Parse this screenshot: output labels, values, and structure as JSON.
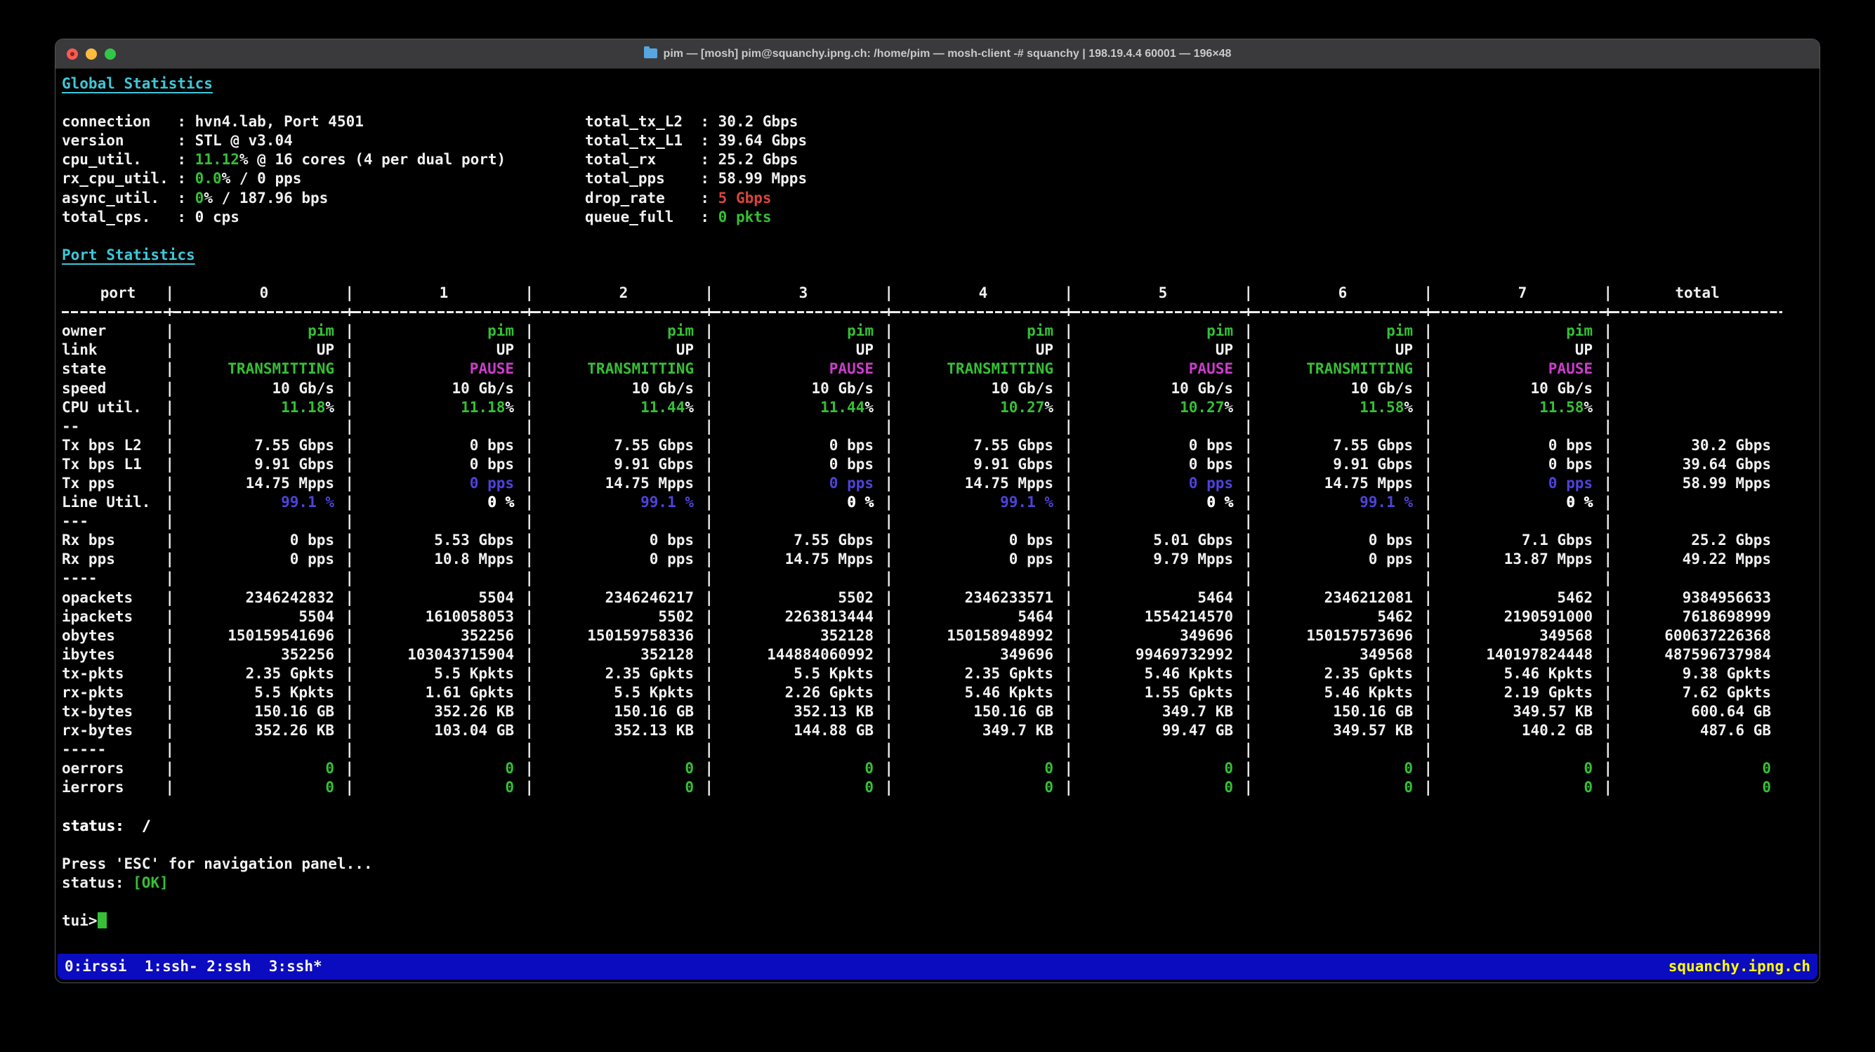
{
  "window": {
    "title": "pim — [mosh] pim@squanchy.ipng.ch: /home/pim — mosh-client -# squanchy | 198.19.4.4 60001 — 196×48"
  },
  "colors": {
    "foreground": "#f1f1f1",
    "green": "#35c035",
    "cyan": "#3ec7d8",
    "magenta": "#cb3dcb",
    "blue": "#4e42dd",
    "red": "#d8453c",
    "yellow": "#ffff00",
    "tmux_bar": "#0b0bc0"
  },
  "global_stats": {
    "heading": "Global Statistics",
    "left": [
      {
        "label": "connection",
        "value": [
          {
            "t": "hvn4.lab, Port 4501"
          }
        ]
      },
      {
        "label": "version",
        "value": [
          {
            "t": "STL @ v3.04"
          }
        ]
      },
      {
        "label": "cpu_util.",
        "value": [
          {
            "t": "11.12",
            "c": "green"
          },
          {
            "t": "% @ 16 cores (4 per dual port)"
          }
        ]
      },
      {
        "label": "rx_cpu_util.",
        "value": [
          {
            "t": "0.0",
            "c": "green"
          },
          {
            "t": "% / 0 pps"
          }
        ]
      },
      {
        "label": "async_util.",
        "value": [
          {
            "t": "0",
            "c": "green"
          },
          {
            "t": "% / 187.96 bps"
          }
        ]
      },
      {
        "label": "total_cps.",
        "value": [
          {
            "t": "0 cps"
          }
        ]
      }
    ],
    "right": [
      {
        "label": "total_tx_L2",
        "value": [
          {
            "t": "30.2 Gbps"
          }
        ]
      },
      {
        "label": "total_tx_L1",
        "value": [
          {
            "t": "39.64 Gbps"
          }
        ]
      },
      {
        "label": "total_rx",
        "value": [
          {
            "t": "25.2 Gbps"
          }
        ]
      },
      {
        "label": "total_pps",
        "value": [
          {
            "t": "58.99 Mpps"
          }
        ]
      },
      {
        "label": "drop_rate",
        "value": [
          {
            "t": "5 Gbps",
            "c": "red"
          }
        ]
      },
      {
        "label": "queue_full",
        "value": [
          {
            "t": "0 pkts",
            "c": "green"
          }
        ]
      }
    ]
  },
  "port_stats": {
    "heading": "Port Statistics",
    "columns": [
      "port",
      "0",
      "1",
      "2",
      "3",
      "4",
      "5",
      "6",
      "7",
      "total"
    ],
    "rows": [
      {
        "l": "owner",
        "c": "green",
        "v": [
          "pim",
          "pim",
          "pim",
          "pim",
          "pim",
          "pim",
          "pim",
          "pim",
          ""
        ]
      },
      {
        "l": "link",
        "v": [
          "UP",
          "UP",
          "UP",
          "UP",
          "UP",
          "UP",
          "UP",
          "UP",
          ""
        ]
      },
      {
        "l": "state",
        "v": [
          {
            "t": "TRANSMITTING",
            "c": "green"
          },
          {
            "t": "PAUSE",
            "c": "magenta"
          },
          {
            "t": "TRANSMITTING",
            "c": "green"
          },
          {
            "t": "PAUSE",
            "c": "magenta"
          },
          {
            "t": "TRANSMITTING",
            "c": "green"
          },
          {
            "t": "PAUSE",
            "c": "magenta"
          },
          {
            "t": "TRANSMITTING",
            "c": "green"
          },
          {
            "t": "PAUSE",
            "c": "magenta"
          },
          ""
        ]
      },
      {
        "l": "speed",
        "v": [
          "10 Gb/s",
          "10 Gb/s",
          "10 Gb/s",
          "10 Gb/s",
          "10 Gb/s",
          "10 Gb/s",
          "10 Gb/s",
          "10 Gb/s",
          ""
        ]
      },
      {
        "l": "CPU util.",
        "v": [
          [
            {
              "t": "11.18",
              "c": "green"
            },
            {
              "t": "%"
            }
          ],
          [
            {
              "t": "11.18",
              "c": "green"
            },
            {
              "t": "%"
            }
          ],
          [
            {
              "t": "11.44",
              "c": "green"
            },
            {
              "t": "%"
            }
          ],
          [
            {
              "t": "11.44",
              "c": "green"
            },
            {
              "t": "%"
            }
          ],
          [
            {
              "t": "10.27",
              "c": "green"
            },
            {
              "t": "%"
            }
          ],
          [
            {
              "t": "10.27",
              "c": "green"
            },
            {
              "t": "%"
            }
          ],
          [
            {
              "t": "11.58",
              "c": "green"
            },
            {
              "t": "%"
            }
          ],
          [
            {
              "t": "11.58",
              "c": "green"
            },
            {
              "t": "%"
            }
          ],
          ""
        ]
      },
      {
        "sep": "--"
      },
      {
        "l": "Tx bps L2",
        "v": [
          "7.55 Gbps",
          "0 bps",
          "7.55 Gbps",
          "0 bps",
          "7.55 Gbps",
          "0 bps",
          "7.55 Gbps",
          "0 bps",
          "30.2 Gbps"
        ]
      },
      {
        "l": "Tx bps L1",
        "v": [
          "9.91 Gbps",
          "0 bps",
          "9.91 Gbps",
          "0 bps",
          "9.91 Gbps",
          "0 bps",
          "9.91 Gbps",
          "0 bps",
          "39.64 Gbps"
        ]
      },
      {
        "l": "Tx pps",
        "v": [
          "14.75 Mpps",
          {
            "t": "0 pps",
            "c": "blue"
          },
          "14.75 Mpps",
          {
            "t": "0 pps",
            "c": "blue"
          },
          "14.75 Mpps",
          {
            "t": "0 pps",
            "c": "blue"
          },
          "14.75 Mpps",
          {
            "t": "0 pps",
            "c": "blue"
          },
          "58.99 Mpps"
        ]
      },
      {
        "l": "Line Util.",
        "v": [
          {
            "t": "99.1 %",
            "c": "blue"
          },
          {
            "t": "0 %",
            "c": "bright"
          },
          {
            "t": "99.1 %",
            "c": "blue"
          },
          {
            "t": "0 %",
            "c": "bright"
          },
          {
            "t": "99.1 %",
            "c": "blue"
          },
          {
            "t": "0 %",
            "c": "bright"
          },
          {
            "t": "99.1 %",
            "c": "blue"
          },
          {
            "t": "0 %",
            "c": "bright"
          },
          ""
        ]
      },
      {
        "sep": "---"
      },
      {
        "l": "Rx bps",
        "v": [
          "0 bps",
          "5.53 Gbps",
          "0 bps",
          "7.55 Gbps",
          "0 bps",
          "5.01 Gbps",
          "0 bps",
          "7.1 Gbps",
          "25.2 Gbps"
        ]
      },
      {
        "l": "Rx pps",
        "v": [
          "0 pps",
          "10.8 Mpps",
          "0 pps",
          "14.75 Mpps",
          "0 pps",
          "9.79 Mpps",
          "0 pps",
          "13.87 Mpps",
          "49.22 Mpps"
        ]
      },
      {
        "sep": "----"
      },
      {
        "l": "opackets",
        "v": [
          "2346242832",
          "5504",
          "2346246217",
          "5502",
          "2346233571",
          "5464",
          "2346212081",
          "5462",
          "9384956633"
        ]
      },
      {
        "l": "ipackets",
        "v": [
          "5504",
          "1610058053",
          "5502",
          "2263813444",
          "5464",
          "1554214570",
          "5462",
          "2190591000",
          "7618698999"
        ]
      },
      {
        "l": "obytes",
        "v": [
          "150159541696",
          "352256",
          "150159758336",
          "352128",
          "150158948992",
          "349696",
          "150157573696",
          "349568",
          "600637226368"
        ]
      },
      {
        "l": "ibytes",
        "v": [
          "352256",
          "103043715904",
          "352128",
          "144884060992",
          "349696",
          "99469732992",
          "349568",
          "140197824448",
          "487596737984"
        ]
      },
      {
        "l": "tx-pkts",
        "v": [
          "2.35 Gpkts",
          "5.5 Kpkts",
          "2.35 Gpkts",
          "5.5 Kpkts",
          "2.35 Gpkts",
          "5.46 Kpkts",
          "2.35 Gpkts",
          "5.46 Kpkts",
          "9.38 Gpkts"
        ]
      },
      {
        "l": "rx-pkts",
        "v": [
          "5.5 Kpkts",
          "1.61 Gpkts",
          "5.5 Kpkts",
          "2.26 Gpkts",
          "5.46 Kpkts",
          "1.55 Gpkts",
          "5.46 Kpkts",
          "2.19 Gpkts",
          "7.62 Gpkts"
        ]
      },
      {
        "l": "tx-bytes",
        "v": [
          "150.16 GB",
          "352.26 KB",
          "150.16 GB",
          "352.13 KB",
          "150.16 GB",
          "349.7 KB",
          "150.16 GB",
          "349.57 KB",
          "600.64 GB"
        ]
      },
      {
        "l": "rx-bytes",
        "v": [
          "352.26 KB",
          "103.04 GB",
          "352.13 KB",
          "144.88 GB",
          "349.7 KB",
          "99.47 GB",
          "349.57 KB",
          "140.2 GB",
          "487.6 GB"
        ]
      },
      {
        "sep": "-----"
      },
      {
        "l": "oerrors",
        "c": "green",
        "v": [
          "0",
          "0",
          "0",
          "0",
          "0",
          "0",
          "0",
          "0",
          "0"
        ]
      },
      {
        "l": "ierrors",
        "c": "green",
        "v": [
          "0",
          "0",
          "0",
          "0",
          "0",
          "0",
          "0",
          "0",
          "0"
        ]
      }
    ]
  },
  "footer": {
    "lines": [
      {
        "parts": [
          {
            "t": "status:  /",
            "c": "bright"
          }
        ]
      },
      {
        "parts": []
      },
      {
        "parts": [
          {
            "t": "Press 'ESC' for navigation panel..."
          }
        ]
      },
      {
        "parts": [
          {
            "t": "status: "
          },
          {
            "t": "[OK]",
            "c": "green"
          }
        ]
      },
      {
        "parts": []
      },
      {
        "prompt": true,
        "cursor": true,
        "parts": [
          {
            "t": "tui>"
          }
        ]
      }
    ]
  },
  "tmux": {
    "left": "0:irssi  1:ssh- 2:ssh  3:ssh*",
    "right": "squanchy.ipng.ch"
  }
}
